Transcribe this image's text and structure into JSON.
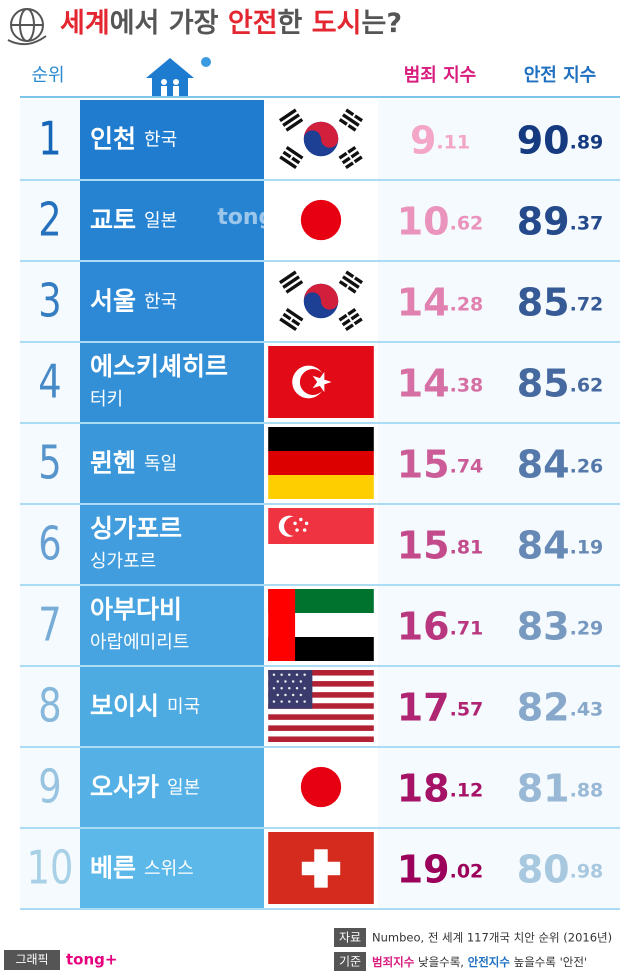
{
  "header": {
    "title": [
      "세계",
      "에서 가장 ",
      "안전",
      "한 ",
      "도시",
      "는?"
    ],
    "rank": "순위",
    "crime": "범죄 지수",
    "safety": "안전 지수"
  },
  "watermark": "tong+",
  "table": {
    "rows": [
      {
        "rank": "1",
        "city": "인천",
        "country": "한국",
        "crime": "9.11",
        "safety": "90.89"
      },
      {
        "rank": "2",
        "city": "교토",
        "country": "일본",
        "crime": "10.62",
        "safety": "89.37"
      },
      {
        "rank": "3",
        "city": "서울",
        "country": "한국",
        "crime": "14.28",
        "safety": "85.72"
      },
      {
        "rank": "4",
        "city": "에스키셰히르",
        "country": "터키",
        "crime": "14.38",
        "safety": "85.62"
      },
      {
        "rank": "5",
        "city": "뮌헨",
        "country": "독일",
        "crime": "15.74",
        "safety": "84.26"
      },
      {
        "rank": "6",
        "city": "싱가포르",
        "country": "싱가포르",
        "crime": "15.81",
        "safety": "84.19"
      },
      {
        "rank": "7",
        "city": "아부다비",
        "country": "아랍에미리트",
        "crime": "16.71",
        "safety": "83.29"
      },
      {
        "rank": "8",
        "city": "보이시",
        "country": "미국",
        "crime": "17.57",
        "safety": "82.43"
      },
      {
        "rank": "9",
        "city": "오사카",
        "country": "일본",
        "crime": "18.12",
        "safety": "81.88"
      },
      {
        "rank": "10",
        "city": "베른",
        "country": "스위스",
        "crime": "19.02",
        "safety": "80.98"
      }
    ]
  },
  "footer": {
    "graphic_label": "그래픽",
    "brand": "tong+",
    "source_label": "자료",
    "source": "Numbeo, 전 세계 117개국 치안 순위 (2016년)",
    "basis_label": "기준",
    "basis": [
      "범죄지수",
      " 낮을수록, ",
      "안전지수",
      " 높을수록 '안전'"
    ]
  }
}
